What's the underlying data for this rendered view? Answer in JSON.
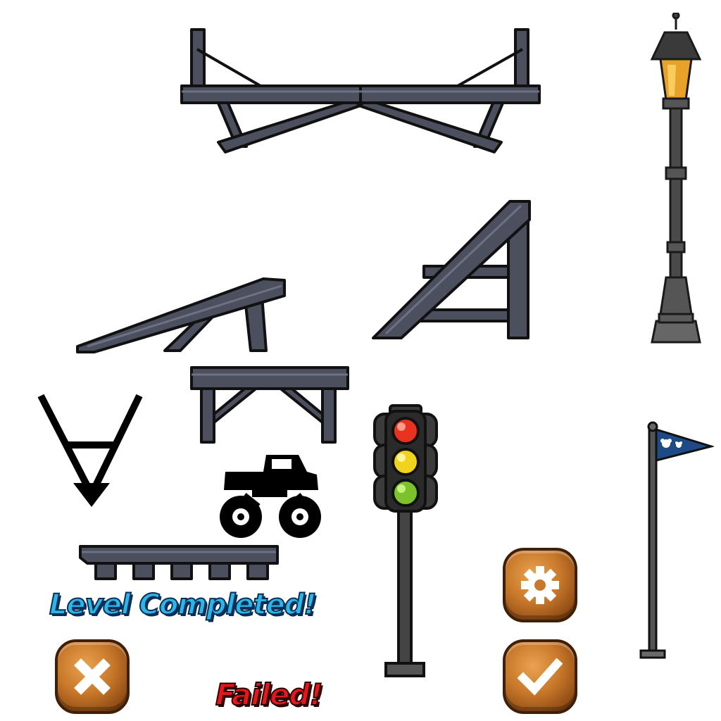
{
  "sprites": {
    "seesaw": "seesaw-plank",
    "lamp_post": "street-lamp",
    "small_ramp": "small-ramp",
    "big_ramp": "large-ramp",
    "bench": "bench-platform",
    "v_arrow": "v-arrow-down",
    "truck": "monster-truck",
    "traffic_light": "traffic-light",
    "goal_flag": "goal-flag",
    "block_row": "block-platform"
  },
  "banners": {
    "completed": "Level Completed!",
    "failed": "Failed!"
  },
  "buttons": {
    "close": "close-icon",
    "settings": "gear-icon",
    "confirm": "check-icon"
  },
  "colors": {
    "metal": "#4b4f5e",
    "button": "#c8782a",
    "complete_text": "#29b6e8",
    "failed_text": "#e8151a",
    "flag": "#1e4b86"
  }
}
